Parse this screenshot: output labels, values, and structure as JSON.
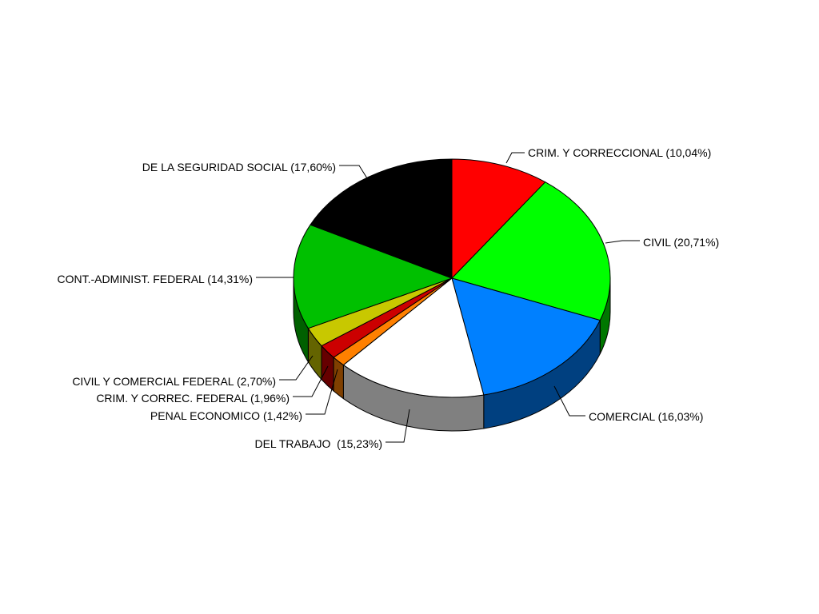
{
  "chart_data": {
    "type": "pie",
    "title": "",
    "three_d": true,
    "start": "top",
    "direction": "clockwise",
    "slices": [
      {
        "name": "CRIM. Y CORRECCIONAL",
        "value": 10.04,
        "label": "CRIM. Y CORRECCIONAL (10,04%)",
        "color": "#ff0000",
        "side_color": "#8b0000"
      },
      {
        "name": "CIVIL",
        "value": 20.71,
        "label": "CIVIL (20,71%)",
        "color": "#00ff00",
        "side_color": "#007700"
      },
      {
        "name": "COMERCIAL",
        "value": 16.03,
        "label": "COMERCIAL (16,03%)",
        "color": "#0080ff",
        "side_color": "#004080"
      },
      {
        "name": "DEL TRABAJO",
        "value": 15.23,
        "label": "DEL TRABAJO  (15,23%)",
        "color": "#ffffff",
        "side_color": "#808080"
      },
      {
        "name": "PENAL ECONOMICO",
        "value": 1.42,
        "label": "PENAL ECONOMICO (1,42%)",
        "color": "#ff8000",
        "side_color": "#804000"
      },
      {
        "name": "CRIM. Y CORREC. FEDERAL",
        "value": 1.96,
        "label": "CRIM. Y CORREC. FEDERAL (1,96%)",
        "color": "#cc0000",
        "side_color": "#660000"
      },
      {
        "name": "CIVIL Y COMERCIAL FEDERAL",
        "value": 2.7,
        "label": "CIVIL Y COMERCIAL FEDERAL (2,70%)",
        "color": "#c8c800",
        "side_color": "#646400"
      },
      {
        "name": "CONT.-ADMINIST. FEDERAL",
        "value": 14.31,
        "label": "CONT.-ADMINIST. FEDERAL (14,31%)",
        "color": "#00c000",
        "side_color": "#006000"
      },
      {
        "name": "DE LA SEGURIDAD SOCIAL",
        "value": 17.6,
        "label": "DE LA SEGURIDAD SOCIAL (17,60%)",
        "color": "#000000",
        "side_color": "#000000"
      }
    ]
  }
}
